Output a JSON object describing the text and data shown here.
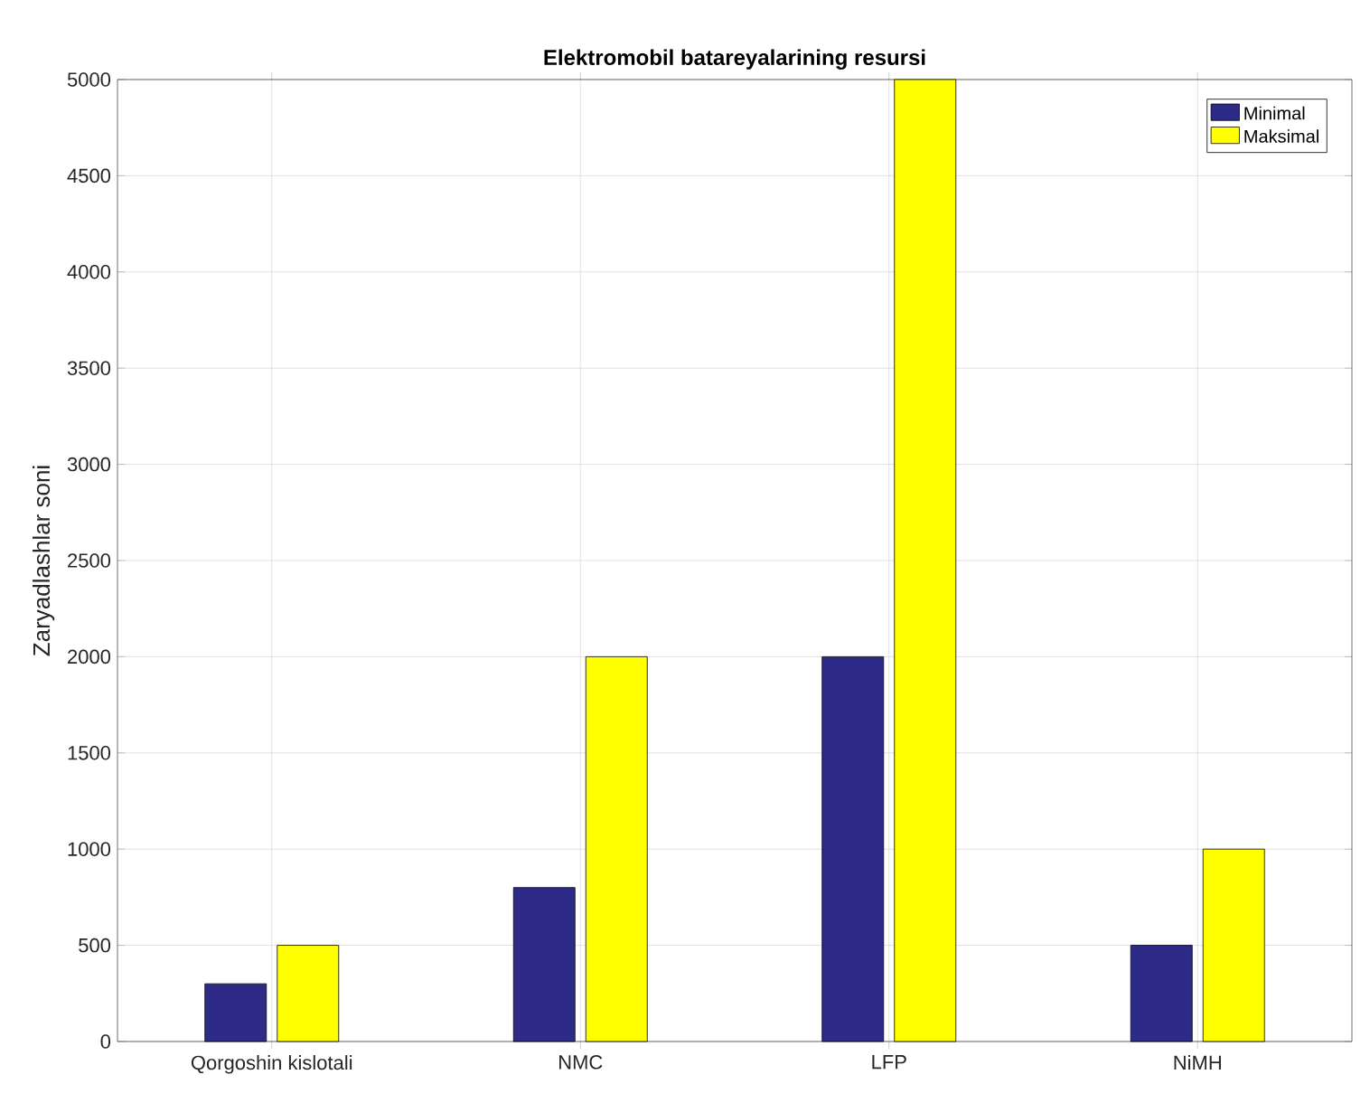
{
  "chart_data": {
    "type": "bar",
    "title": "Elektromobil batareyalarining resursi",
    "ylabel": "Zaryadlashlar soni",
    "categories": [
      "Qorgoshin kislotali",
      "NMC",
      "LFP",
      "NiMH"
    ],
    "series": [
      {
        "name": "Minimal",
        "color": "#2e2a87",
        "values": [
          300,
          800,
          2000,
          500
        ]
      },
      {
        "name": "Maksimal",
        "color": "#ffff00",
        "values": [
          500,
          2000,
          5000,
          1000
        ]
      }
    ],
    "ylim": [
      0,
      5000
    ],
    "yticks": [
      0,
      500,
      1000,
      1500,
      2000,
      2500,
      3000,
      3500,
      4000,
      4500,
      5000
    ],
    "grid": true,
    "legend": "top right"
  }
}
